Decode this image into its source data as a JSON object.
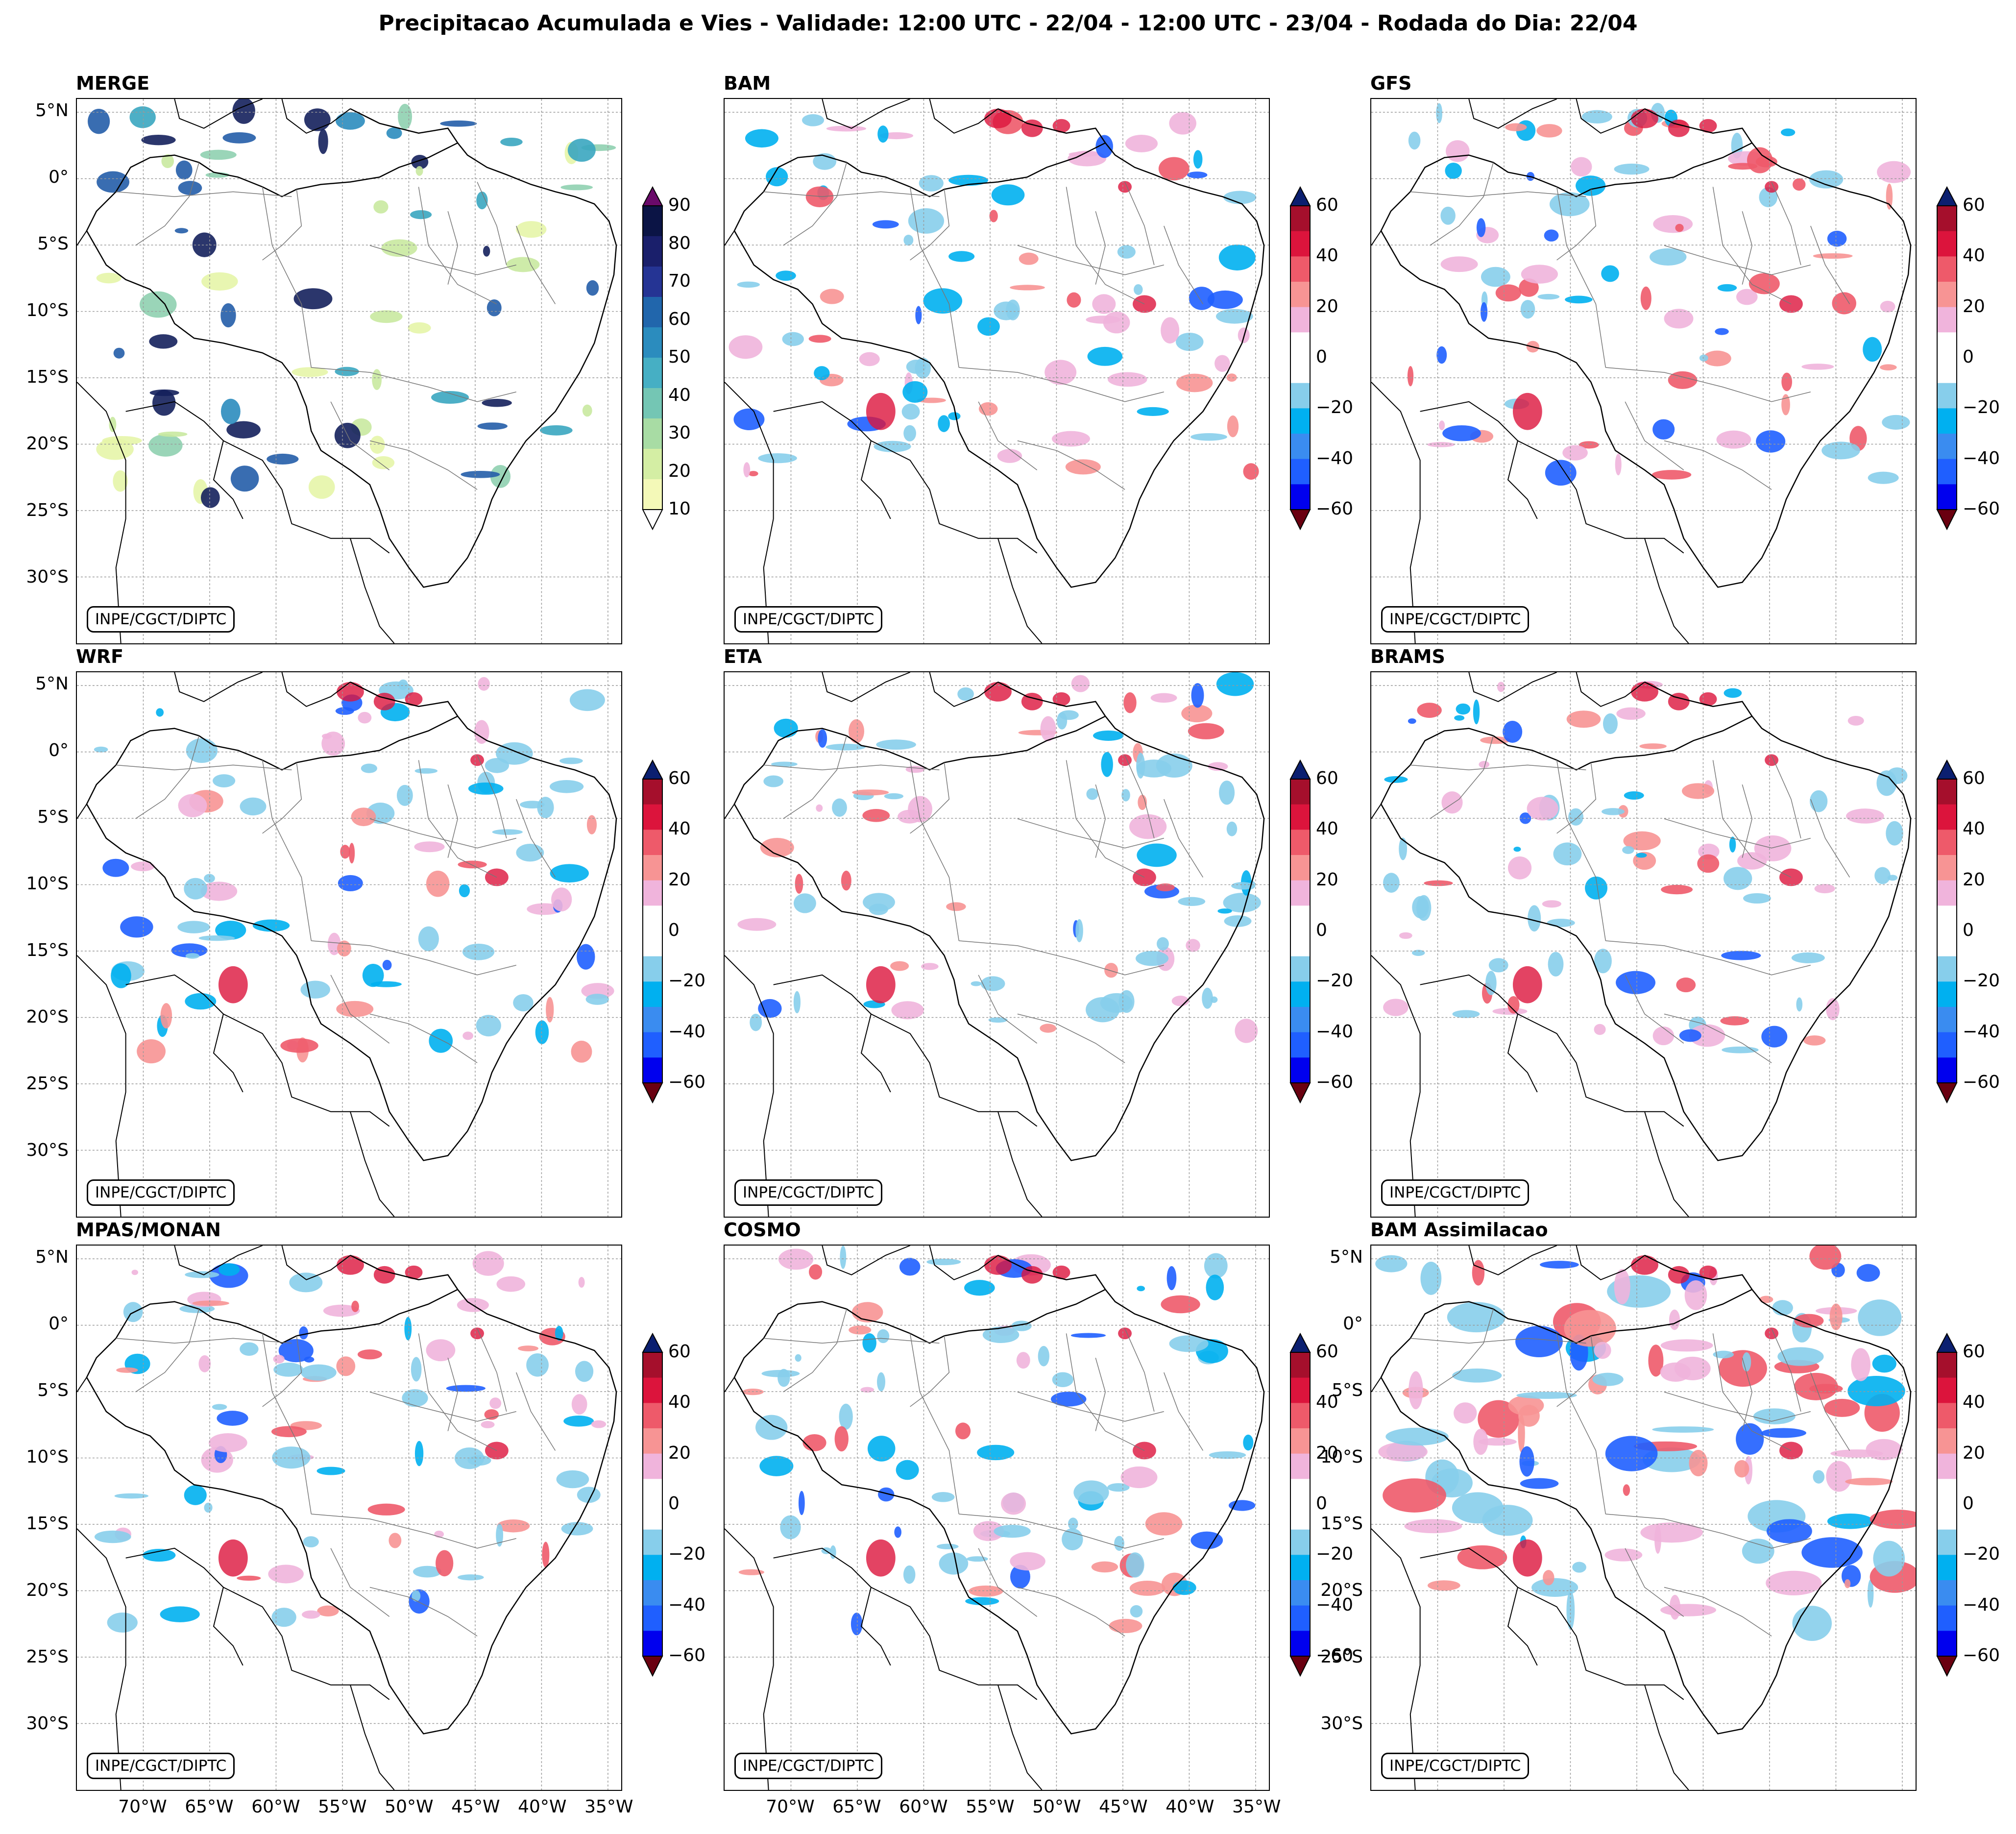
{
  "suptitle": "Precipitacao Acumulada e Vies - Validade: 12:00 UTC - 22/04 - 12:00 UTC - 23/04 - Rodada do Dia: 22/04",
  "credit": "INPE/CGCT/DIPTC",
  "panels": [
    {
      "title": "MERGE",
      "colorbar": "precip"
    },
    {
      "title": "BAM",
      "colorbar": "bias"
    },
    {
      "title": "GFS",
      "colorbar": "bias"
    },
    {
      "title": "WRF",
      "colorbar": "bias"
    },
    {
      "title": "ETA",
      "colorbar": "bias"
    },
    {
      "title": "BRAMS",
      "colorbar": "bias"
    },
    {
      "title": "MPAS/MONAN",
      "colorbar": "bias"
    },
    {
      "title": "COSMO",
      "colorbar": "bias"
    },
    {
      "title": "BAM Assimilacao",
      "colorbar": "bias"
    }
  ],
  "lat_labels": [
    "5°N",
    "0°",
    "5°S",
    "10°S",
    "15°S",
    "20°S",
    "25°S",
    "30°S"
  ],
  "lon_labels": [
    "70°W",
    "65°W",
    "60°W",
    "55°W",
    "50°W",
    "45°W",
    "40°W",
    "35°W"
  ],
  "colorbars": {
    "precip": {
      "ticks": [
        "90",
        "80",
        "70",
        "60",
        "50",
        "40",
        "30",
        "20",
        "10"
      ],
      "colors": [
        "#f4f9b8",
        "#d4eea4",
        "#a8dca4",
        "#74c6b4",
        "#46afc4",
        "#2b8cbe",
        "#2166ac",
        "#253494",
        "#1a1f6b",
        "#0b1445"
      ],
      "extend_top": "#6a0a6a",
      "extend_bottom": "#ffffff"
    },
    "bias": {
      "ticks": [
        "60",
        "40",
        "20",
        "0",
        "−20",
        "−40",
        "−60"
      ],
      "colors": [
        "#0000ee",
        "#1f5fff",
        "#3a8cf0",
        "#00b0f0",
        "#87ceeb",
        "#ffffff",
        "#ffffff",
        "#f0b4dc",
        "#f79494",
        "#ee5a6a",
        "#dc143c",
        "#a50f2c"
      ],
      "extend_top": "#0b1f70",
      "extend_bottom": "#6a0010"
    }
  },
  "bias_palette": {
    "blue_light": "#87ceeb",
    "blue_mid": "#00b0f0",
    "blue_dark": "#1f5fff",
    "navy": "#0b1f70",
    "pink": "#f0b4dc",
    "red_light": "#f79494",
    "red_dark": "#a50f2c"
  }
}
